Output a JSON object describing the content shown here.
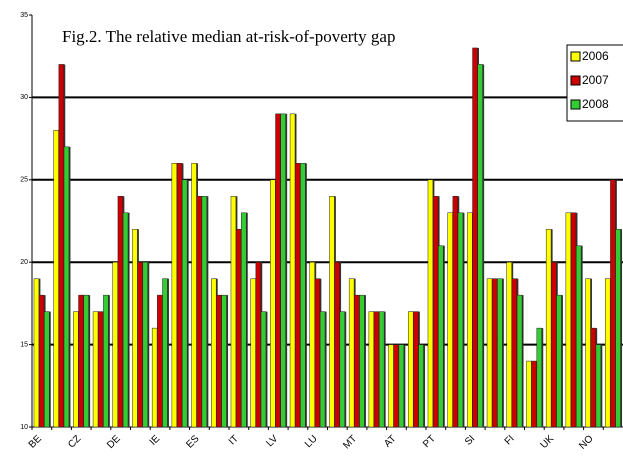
{
  "chart_data": {
    "type": "bar",
    "title": "Fig.2. The relative median at-risk-of-poverty gap",
    "categories": [
      "BE",
      null,
      "CZ",
      null,
      "DE",
      null,
      "IE",
      null,
      "ES",
      null,
      "IT",
      null,
      "LV",
      null,
      "LU",
      null,
      "MT",
      null,
      "AT",
      null,
      "PT",
      null,
      "SI",
      null,
      "FI",
      null,
      "UK",
      null,
      "NO",
      null
    ],
    "series": [
      {
        "name": "2006",
        "color": "#ffff00",
        "values": [
          19,
          28,
          17,
          17,
          20,
          22,
          16,
          26,
          26,
          19,
          24,
          19,
          25,
          29,
          20,
          24,
          19,
          17,
          15,
          17,
          25,
          23,
          23,
          19,
          20,
          14,
          22,
          23,
          19,
          19
        ]
      },
      {
        "name": "2007",
        "color": "#cc0000",
        "values": [
          18,
          32,
          18,
          17,
          24,
          20,
          18,
          26,
          24,
          18,
          22,
          20,
          29,
          26,
          19,
          20,
          18,
          17,
          15,
          17,
          24,
          24,
          33,
          19,
          19,
          14,
          20,
          23,
          16,
          25
        ]
      },
      {
        "name": "2008",
        "color": "#33cc33",
        "values": [
          17,
          27,
          18,
          18,
          23,
          20,
          19,
          25,
          24,
          18,
          23,
          17,
          29,
          26,
          17,
          17,
          18,
          17,
          15,
          15,
          21,
          23,
          32,
          19,
          18,
          16,
          18,
          21,
          15,
          22
        ]
      }
    ],
    "ylim": [
      10,
      35
    ],
    "yticks": [
      10,
      15,
      20,
      25,
      30,
      35
    ],
    "grid": true
  }
}
